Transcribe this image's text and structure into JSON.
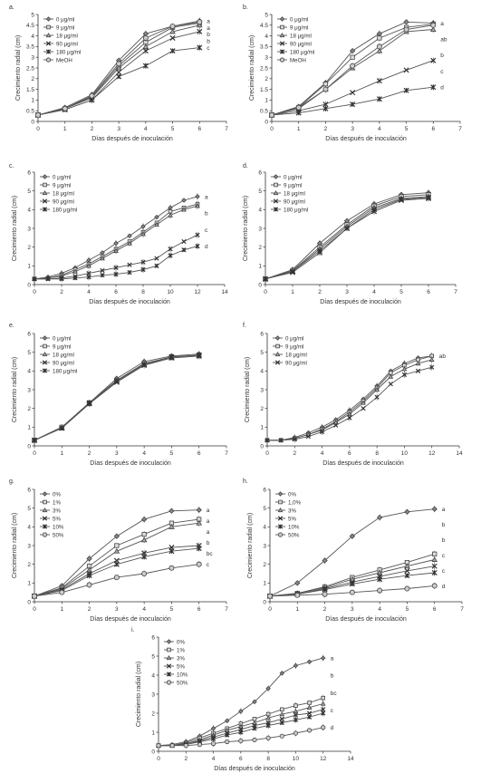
{
  "chart_data": [
    {
      "panel": "a.",
      "type": "line",
      "xlabel": "Días después de inoculación",
      "ylabel": "Crecimiento radial (cm)",
      "xlim": [
        0,
        7
      ],
      "ylim": [
        0,
        5
      ],
      "xticks": [
        0,
        1,
        2,
        3,
        4,
        5,
        6,
        7
      ],
      "yticks": [
        0,
        0.5,
        1,
        1.5,
        2,
        2.5,
        3,
        3.5,
        4,
        4.5,
        5
      ],
      "x": [
        0,
        1,
        2,
        3,
        4,
        5,
        6
      ],
      "series": [
        {
          "name": "0 μg/ml",
          "marker": "diamond",
          "values": [
            0.3,
            0.65,
            1.25,
            2.85,
            4.1,
            4.45,
            4.7
          ]
        },
        {
          "name": "9 μg/ml",
          "marker": "square",
          "values": [
            0.3,
            0.6,
            1.15,
            2.6,
            3.7,
            4.4,
            4.6
          ]
        },
        {
          "name": "18 μg/ml",
          "marker": "triangle",
          "values": [
            0.3,
            0.6,
            1.1,
            2.5,
            3.5,
            4.2,
            4.5
          ]
        },
        {
          "name": "90 μg/ml",
          "marker": "x",
          "values": [
            0.3,
            0.55,
            1.0,
            2.3,
            3.3,
            3.9,
            4.2
          ]
        },
        {
          "name": "180 μg/ml",
          "marker": "star",
          "values": [
            0.3,
            0.55,
            1.0,
            2.1,
            2.6,
            3.3,
            3.45
          ]
        },
        {
          "name": "MeOH",
          "marker": "circle",
          "values": [
            0.3,
            0.6,
            1.2,
            2.7,
            3.9,
            4.45,
            4.65
          ]
        }
      ],
      "annotations": [
        "a",
        "a",
        "b",
        "b",
        "c"
      ]
    },
    {
      "panel": "b.",
      "type": "line",
      "xlabel": "Días después de inoculación",
      "ylabel": "Crecimiento radial (cm)",
      "xlim": [
        0,
        7
      ],
      "ylim": [
        0,
        5
      ],
      "xticks": [
        0,
        1,
        2,
        3,
        4,
        5,
        6,
        7
      ],
      "yticks": [
        0,
        0.5,
        1,
        1.5,
        2,
        2.5,
        3,
        3.5,
        4,
        4.5,
        5
      ],
      "x": [
        0,
        1,
        2,
        3,
        4,
        5,
        6
      ],
      "series": [
        {
          "name": "0 μg/ml",
          "marker": "diamond",
          "values": [
            0.3,
            0.7,
            1.8,
            3.3,
            4.1,
            4.65,
            4.6
          ]
        },
        {
          "name": "9 μg/ml",
          "marker": "square",
          "values": [
            0.3,
            0.65,
            1.75,
            3.0,
            3.9,
            4.4,
            4.55
          ]
        },
        {
          "name": "18 μg/ml",
          "marker": "triangle",
          "values": [
            0.3,
            0.6,
            1.5,
            2.5,
            3.3,
            4.2,
            4.3
          ]
        },
        {
          "name": "90 μg/ml",
          "marker": "x",
          "values": [
            0.3,
            0.5,
            0.8,
            1.35,
            1.9,
            2.4,
            2.85
          ]
        },
        {
          "name": "180 μg/ml",
          "marker": "star",
          "values": [
            0.3,
            0.4,
            0.6,
            0.8,
            1.05,
            1.45,
            1.6
          ]
        },
        {
          "name": "MeOH",
          "marker": "circle",
          "values": [
            0.3,
            0.65,
            1.5,
            2.6,
            3.5,
            4.3,
            4.5
          ]
        }
      ],
      "annotations": [
        "a",
        "ab",
        "b",
        "c",
        "d"
      ]
    },
    {
      "panel": "c.",
      "type": "line",
      "xlabel": "Días después de inoculación",
      "ylabel": "Crecimiento radial (cm)",
      "xlim": [
        0,
        14
      ],
      "ylim": [
        0,
        6
      ],
      "xticks": [
        0,
        2,
        4,
        6,
        8,
        10,
        12,
        14
      ],
      "yticks": [
        0,
        1,
        2,
        3,
        4,
        5,
        6
      ],
      "x": [
        0,
        1,
        2,
        3,
        4,
        5,
        6,
        7,
        8,
        9,
        10,
        11,
        12
      ],
      "series": [
        {
          "name": "0 μg/ml",
          "marker": "diamond",
          "values": [
            0.3,
            0.4,
            0.6,
            0.9,
            1.3,
            1.7,
            2.2,
            2.6,
            3.1,
            3.6,
            4.1,
            4.5,
            4.7
          ]
        },
        {
          "name": "9 μg/ml",
          "marker": "square",
          "values": [
            0.3,
            0.35,
            0.5,
            0.8,
            1.1,
            1.5,
            1.9,
            2.3,
            2.8,
            3.3,
            3.9,
            4.1,
            4.3
          ]
        },
        {
          "name": "18 μg/ml",
          "marker": "triangle",
          "values": [
            0.3,
            0.35,
            0.45,
            0.7,
            1.0,
            1.4,
            1.8,
            2.2,
            2.7,
            3.2,
            3.7,
            4.0,
            4.2
          ]
        },
        {
          "name": "90 μg/ml",
          "marker": "x",
          "values": [
            0.3,
            0.3,
            0.35,
            0.45,
            0.6,
            0.75,
            0.9,
            1.05,
            1.2,
            1.4,
            1.9,
            2.3,
            2.65
          ]
        },
        {
          "name": "180 μg/ml",
          "marker": "star",
          "values": [
            0.3,
            0.3,
            0.3,
            0.35,
            0.4,
            0.5,
            0.55,
            0.65,
            0.8,
            1.0,
            1.55,
            1.85,
            2.05
          ]
        }
      ],
      "annotations": [
        "a",
        "b",
        "c",
        "d"
      ]
    },
    {
      "panel": "d.",
      "type": "line",
      "xlabel": "Días después de inoculación",
      "ylabel": "Crecimiento radial (cm)",
      "xlim": [
        0,
        7
      ],
      "ylim": [
        0,
        6
      ],
      "xticks": [
        0,
        1,
        2,
        3,
        4,
        5,
        6,
        7
      ],
      "yticks": [
        0,
        1,
        2,
        3,
        4,
        5,
        6
      ],
      "x": [
        0,
        1,
        2,
        3,
        4,
        5,
        6
      ],
      "series": [
        {
          "name": "0 μg/ml",
          "marker": "diamond",
          "values": [
            0.3,
            0.8,
            2.2,
            3.4,
            4.3,
            4.8,
            4.9
          ]
        },
        {
          "name": "9 μg/ml",
          "marker": "square",
          "values": [
            0.3,
            0.75,
            2.0,
            3.2,
            4.2,
            4.7,
            4.8
          ]
        },
        {
          "name": "18 μg/ml",
          "marker": "triangle",
          "values": [
            0.3,
            0.7,
            1.9,
            3.1,
            4.1,
            4.6,
            4.7
          ]
        },
        {
          "name": "90 μg/ml",
          "marker": "x",
          "values": [
            0.3,
            0.65,
            1.7,
            3.0,
            3.9,
            4.5,
            4.6
          ]
        },
        {
          "name": "180 μg/ml",
          "marker": "star",
          "values": [
            0.3,
            0.7,
            1.8,
            3.0,
            4.0,
            4.55,
            4.65
          ]
        }
      ]
    },
    {
      "panel": "e.",
      "type": "line",
      "xlabel": "Días después de inoculación",
      "ylabel": "Crecimiento radial (cm)",
      "xlim": [
        0,
        7
      ],
      "ylim": [
        0,
        6
      ],
      "xticks": [
        0,
        1,
        2,
        3,
        4,
        5,
        6,
        7
      ],
      "yticks": [
        0,
        1,
        2,
        3,
        4,
        5,
        6
      ],
      "x": [
        0,
        1,
        2,
        3,
        4,
        5,
        6
      ],
      "series": [
        {
          "name": "0 μg/ml",
          "marker": "diamond",
          "values": [
            0.3,
            1.0,
            2.3,
            3.6,
            4.5,
            4.8,
            4.9
          ]
        },
        {
          "name": "9 μg/ml",
          "marker": "square",
          "values": [
            0.3,
            1.0,
            2.3,
            3.5,
            4.4,
            4.75,
            4.85
          ]
        },
        {
          "name": "18 μg/ml",
          "marker": "triangle",
          "values": [
            0.3,
            0.95,
            2.25,
            3.5,
            4.35,
            4.7,
            4.8
          ]
        },
        {
          "name": "90 μg/ml",
          "marker": "x",
          "values": [
            0.3,
            0.95,
            2.25,
            3.4,
            4.3,
            4.7,
            4.8
          ]
        },
        {
          "name": "180 μg/ml",
          "marker": "star",
          "values": [
            0.3,
            0.95,
            2.3,
            3.45,
            4.35,
            4.75,
            4.85
          ]
        }
      ]
    },
    {
      "panel": "f.",
      "type": "line",
      "xlabel": "Días después de inoculación",
      "ylabel": "Crecimiento radial (cm)",
      "xlim": [
        0,
        14
      ],
      "ylim": [
        0,
        6
      ],
      "xticks": [
        0,
        2,
        4,
        6,
        8,
        10,
        12,
        14
      ],
      "yticks": [
        0,
        1,
        2,
        3,
        4,
        5,
        6
      ],
      "x": [
        0,
        1,
        2,
        3,
        4,
        5,
        6,
        7,
        8,
        9,
        10,
        11,
        12
      ],
      "series": [
        {
          "name": "0 μg/ml",
          "marker": "diamond",
          "values": [
            0.3,
            0.3,
            0.45,
            0.7,
            1.0,
            1.4,
            1.9,
            2.5,
            3.2,
            4.0,
            4.4,
            4.7,
            4.8
          ]
        },
        {
          "name": "9 μg/ml",
          "marker": "square",
          "values": [
            0.3,
            0.3,
            0.4,
            0.6,
            0.9,
            1.3,
            1.8,
            2.4,
            3.1,
            3.9,
            4.3,
            4.6,
            4.8
          ]
        },
        {
          "name": "18 μg/ml",
          "marker": "triangle",
          "values": [
            0.3,
            0.3,
            0.4,
            0.6,
            0.85,
            1.25,
            1.7,
            2.3,
            3.0,
            3.7,
            4.1,
            4.4,
            4.6
          ]
        },
        {
          "name": "90 μg/ml",
          "marker": "x",
          "values": [
            0.3,
            0.3,
            0.35,
            0.5,
            0.75,
            1.1,
            1.5,
            2.0,
            2.6,
            3.3,
            3.8,
            4.0,
            4.2
          ]
        }
      ],
      "annotations": [
        "ab"
      ]
    },
    {
      "panel": "g.",
      "type": "line",
      "xlabel": "Días después de inoculación",
      "ylabel": "Crecimiento radial (cm)",
      "xlim": [
        0,
        7
      ],
      "ylim": [
        0,
        6
      ],
      "xticks": [
        0,
        1,
        2,
        3,
        4,
        5,
        6,
        7
      ],
      "yticks": [
        0,
        1,
        2,
        3,
        4,
        5,
        6
      ],
      "x": [
        0,
        1,
        2,
        3,
        4,
        5,
        6
      ],
      "series": [
        {
          "name": "0%",
          "marker": "diamond",
          "values": [
            0.3,
            0.85,
            2.3,
            3.5,
            4.4,
            4.85,
            4.9
          ]
        },
        {
          "name": "1%",
          "marker": "square",
          "values": [
            0.3,
            0.75,
            1.9,
            3.0,
            3.6,
            4.2,
            4.4
          ]
        },
        {
          "name": "3%",
          "marker": "triangle",
          "values": [
            0.3,
            0.7,
            1.7,
            2.7,
            3.3,
            4.0,
            4.2
          ]
        },
        {
          "name": "5%",
          "marker": "x",
          "values": [
            0.3,
            0.65,
            1.5,
            2.2,
            2.6,
            2.9,
            3.0
          ]
        },
        {
          "name": "10%",
          "marker": "star",
          "values": [
            0.3,
            0.6,
            1.4,
            2.0,
            2.4,
            2.7,
            2.85
          ]
        },
        {
          "name": "50%",
          "marker": "circle",
          "values": [
            0.3,
            0.5,
            0.9,
            1.3,
            1.5,
            1.8,
            2.0
          ]
        }
      ],
      "annotations": [
        "a",
        "a",
        "a",
        "b",
        "bc",
        "c"
      ]
    },
    {
      "panel": "h.",
      "type": "line",
      "xlabel": "Días después de inoculación",
      "ylabel": "Crecimiento radial (cm)",
      "xlim": [
        0,
        7
      ],
      "ylim": [
        0,
        6
      ],
      "xticks": [
        0,
        1,
        2,
        3,
        4,
        5,
        6,
        7
      ],
      "yticks": [
        0,
        1,
        2,
        3,
        4,
        5,
        6
      ],
      "x": [
        0,
        1,
        2,
        3,
        4,
        5,
        6
      ],
      "series": [
        {
          "name": "0%",
          "marker": "diamond",
          "values": [
            0.3,
            1.0,
            2.2,
            3.5,
            4.5,
            4.8,
            4.95
          ]
        },
        {
          "name": "1,0%",
          "marker": "square",
          "values": [
            0.3,
            0.45,
            0.8,
            1.3,
            1.7,
            2.1,
            2.55
          ]
        },
        {
          "name": "3%",
          "marker": "triangle",
          "values": [
            0.3,
            0.45,
            0.75,
            1.2,
            1.55,
            1.9,
            2.25
          ]
        },
        {
          "name": "5%",
          "marker": "x",
          "values": [
            0.3,
            0.4,
            0.7,
            1.05,
            1.35,
            1.65,
            1.9
          ]
        },
        {
          "name": "10%",
          "marker": "star",
          "values": [
            0.3,
            0.4,
            0.65,
            0.95,
            1.2,
            1.4,
            1.55
          ]
        },
        {
          "name": "50%",
          "marker": "circle",
          "values": [
            0.3,
            0.35,
            0.4,
            0.5,
            0.6,
            0.7,
            0.85
          ]
        }
      ],
      "annotations": [
        "a",
        "b",
        "b",
        "c",
        "c",
        "d"
      ]
    },
    {
      "panel": "i.",
      "type": "line",
      "xlabel": "Días después de inoculación",
      "ylabel": "Crecimiento radial (cm)",
      "xlim": [
        0,
        14
      ],
      "ylim": [
        0,
        6
      ],
      "xticks": [
        0,
        2,
        4,
        6,
        8,
        10,
        12,
        14
      ],
      "yticks": [
        0,
        1,
        2,
        3,
        4,
        5,
        6
      ],
      "x": [
        0,
        1,
        2,
        3,
        4,
        5,
        6,
        7,
        8,
        9,
        10,
        11,
        12
      ],
      "series": [
        {
          "name": "0%",
          "marker": "diamond",
          "values": [
            0.3,
            0.35,
            0.5,
            0.8,
            1.2,
            1.6,
            2.1,
            2.6,
            3.3,
            4.1,
            4.5,
            4.7,
            4.9
          ]
        },
        {
          "name": "1%",
          "marker": "square",
          "values": [
            0.3,
            0.3,
            0.45,
            0.7,
            0.95,
            1.2,
            1.45,
            1.7,
            1.95,
            2.2,
            2.4,
            2.55,
            2.8
          ]
        },
        {
          "name": "3%",
          "marker": "triangle",
          "values": [
            0.3,
            0.3,
            0.4,
            0.6,
            0.85,
            1.1,
            1.3,
            1.5,
            1.75,
            1.95,
            2.1,
            2.3,
            2.5
          ]
        },
        {
          "name": "5%",
          "marker": "x",
          "values": [
            0.3,
            0.3,
            0.4,
            0.55,
            0.75,
            0.95,
            1.15,
            1.35,
            1.5,
            1.7,
            1.9,
            2.0,
            2.2
          ]
        },
        {
          "name": "10%",
          "marker": "star",
          "values": [
            0.3,
            0.3,
            0.35,
            0.5,
            0.65,
            0.85,
            1.0,
            1.2,
            1.35,
            1.5,
            1.65,
            1.8,
            2.0
          ]
        },
        {
          "name": "50%",
          "marker": "circle",
          "values": [
            0.3,
            0.3,
            0.3,
            0.35,
            0.4,
            0.5,
            0.55,
            0.6,
            0.7,
            0.8,
            0.95,
            1.1,
            1.25
          ]
        }
      ],
      "annotations": [
        "a",
        "b",
        "bc",
        "c",
        "d"
      ]
    }
  ]
}
